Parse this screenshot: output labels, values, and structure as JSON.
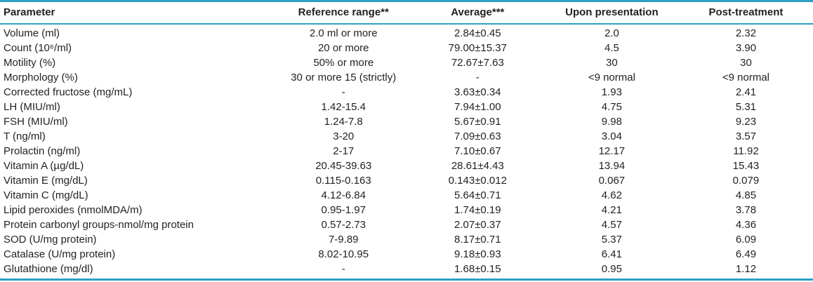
{
  "colors": {
    "rule": "#2f9fc4",
    "text": "#231f20"
  },
  "table": {
    "columns": [
      "Parameter",
      "Reference range**",
      "Average***",
      "Upon presentation",
      "Post-treatment"
    ],
    "rows": [
      [
        "Volume (ml)",
        "2.0 ml or more",
        "2.84±0.45",
        "2.0",
        "2.32"
      ],
      [
        "Count (10⁶/ml)",
        "20 or more",
        "79.00±15.37",
        "4.5",
        "3.90"
      ],
      [
        "Motility (%)",
        "50% or more",
        "72.67±7.63",
        "30",
        "30"
      ],
      [
        "Morphology (%)",
        "30 or more 15 (strictly)",
        "-",
        "<9 normal",
        "<9 normal"
      ],
      [
        "Corrected fructose (mg/mL)",
        "-",
        "3.63±0.34",
        "1.93",
        "2.41"
      ],
      [
        "LH (MIU/ml)",
        "1.42-15.4",
        "7.94±1.00",
        "4.75",
        "5.31"
      ],
      [
        "FSH (MIU/ml)",
        "1.24-7.8",
        "5.67±0.91",
        "9.98",
        "9.23"
      ],
      [
        "T (ng/ml)",
        "3-20",
        "7.09±0.63",
        "3.04",
        "3.57"
      ],
      [
        "Prolactin (ng/ml)",
        "2-17",
        "7.10±0.67",
        "12.17",
        "11.92"
      ],
      [
        "Vitamin A (µg/dL)",
        "20.45-39.63",
        "28.61±4.43",
        "13.94",
        "15.43"
      ],
      [
        "Vitamin E (mg/dL)",
        "0.115-0.163",
        "0.143±0.012",
        "0.067",
        "0.079"
      ],
      [
        "Vitamin C (mg/dL)",
        "4.12-6.84",
        "5.64±0.71",
        "4.62",
        "4.85"
      ],
      [
        "Lipid peroxides (nmolMDA/m)",
        "0.95-1.97",
        "1.74±0.19",
        "4.21",
        "3.78"
      ],
      [
        "Protein carbonyl groups-nmol/mg protein",
        "0.57-2.73",
        "2.07±0.37",
        "4.57",
        "4.36"
      ],
      [
        "SOD (U/mg protein)",
        "7-9.89",
        "8.17±0.71",
        "5.37",
        "6.09"
      ],
      [
        "Catalase (U/mg protein)",
        "8.02-10.95",
        "9.18±0.93",
        "6.41",
        "6.49"
      ],
      [
        "Glutathione (mg/dl)",
        "-",
        "1.68±0.15",
        "0.95",
        "1.12"
      ]
    ]
  }
}
